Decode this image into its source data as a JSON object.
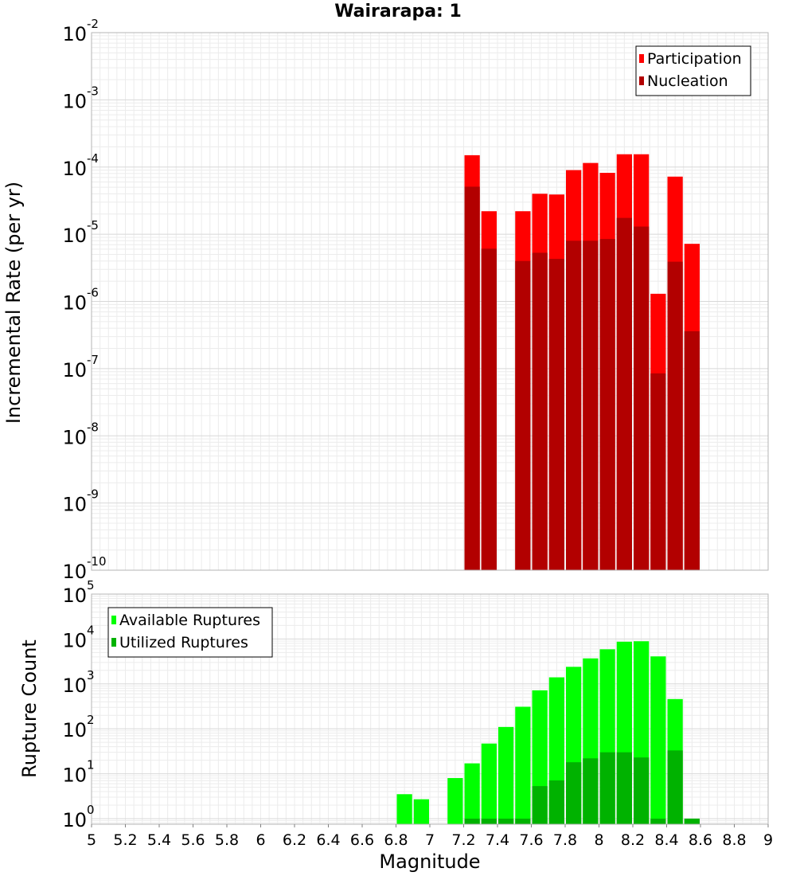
{
  "title": "Wairarapa: 1",
  "chart_data": [
    {
      "type": "bar",
      "ylabel": "Incremental Rate (per yr)",
      "xlabel": "",
      "yscale": "log",
      "ylim": [
        1e-10,
        0.01
      ],
      "xlim": [
        5,
        9
      ],
      "bin_width": 0.1,
      "grid": true,
      "legend_placement": "top-right",
      "legend": [
        "Participation",
        "Nucleation"
      ],
      "colors": {
        "Participation": "#ff0000",
        "Nucleation": "#b20000"
      },
      "series": [
        {
          "name": "Participation",
          "x": [
            7.25,
            7.35,
            7.55,
            7.65,
            7.75,
            7.85,
            7.95,
            8.05,
            8.15,
            8.25,
            8.35,
            8.45,
            8.55
          ],
          "values": [
            0.00015,
            2.2e-05,
            2.2e-05,
            4e-05,
            3.9e-05,
            9e-05,
            0.000115,
            8.2e-05,
            0.000155,
            0.000155,
            1.3e-06,
            7.2e-05,
            7.2e-06
          ]
        },
        {
          "name": "Nucleation",
          "x": [
            7.25,
            7.35,
            7.55,
            7.65,
            7.75,
            7.85,
            7.95,
            8.05,
            8.15,
            8.25,
            8.35,
            8.45,
            8.55
          ],
          "values": [
            5.1e-05,
            6.1e-06,
            4e-06,
            5.3e-06,
            4.3e-06,
            8e-06,
            8e-06,
            8.5e-06,
            1.75e-05,
            1.3e-05,
            8.5e-08,
            3.9e-06,
            3.6e-07
          ]
        }
      ],
      "yticks": [
        {
          "base": "10",
          "exp": "-10"
        },
        {
          "base": "10",
          "exp": "-9"
        },
        {
          "base": "10",
          "exp": "-8"
        },
        {
          "base": "10",
          "exp": "-7"
        },
        {
          "base": "10",
          "exp": "-6"
        },
        {
          "base": "10",
          "exp": "-5"
        },
        {
          "base": "10",
          "exp": "-4"
        },
        {
          "base": "10",
          "exp": "-3"
        },
        {
          "base": "10",
          "exp": "-2"
        }
      ]
    },
    {
      "type": "bar",
      "ylabel": "Rupture Count",
      "xlabel": "Magnitude",
      "yscale": "log",
      "ylim": [
        0.75,
        100000.0
      ],
      "xlim": [
        5,
        9
      ],
      "bin_width": 0.1,
      "grid": true,
      "legend_placement": "top-left",
      "legend": [
        "Available Ruptures",
        "Utilized Ruptures"
      ],
      "colors": {
        "Available Ruptures": "#00ff00",
        "Utilized Ruptures": "#00b200"
      },
      "series": [
        {
          "name": "Available Ruptures",
          "x": [
            6.85,
            6.95,
            7.15,
            7.25,
            7.35,
            7.45,
            7.55,
            7.65,
            7.75,
            7.85,
            7.95,
            8.05,
            8.15,
            8.25,
            8.35,
            8.45,
            8.55
          ],
          "values": [
            3.5,
            2.7,
            8,
            17,
            47,
            110,
            310,
            720,
            1400,
            2400,
            3700,
            5900,
            8700,
            8900,
            4100,
            460,
            1
          ]
        },
        {
          "name": "Utilized Ruptures",
          "x": [
            7.25,
            7.35,
            7.45,
            7.55,
            7.65,
            7.75,
            7.85,
            7.95,
            8.05,
            8.15,
            8.25,
            8.35,
            8.45,
            8.55
          ],
          "values": [
            1,
            1,
            1,
            1,
            5.3,
            7.1,
            18,
            22,
            30,
            30,
            23,
            1,
            33,
            1
          ]
        }
      ],
      "yticks": [
        {
          "base": "10",
          "exp": "0"
        },
        {
          "base": "10",
          "exp": "1"
        },
        {
          "base": "10",
          "exp": "2"
        },
        {
          "base": "10",
          "exp": "3"
        },
        {
          "base": "10",
          "exp": "4"
        },
        {
          "base": "10",
          "exp": "5"
        }
      ],
      "xticks": [
        "5",
        "5.2",
        "5.4",
        "5.6",
        "5.8",
        "6",
        "6.2",
        "6.4",
        "6.6",
        "6.8",
        "7",
        "7.2",
        "7.4",
        "7.6",
        "7.8",
        "8",
        "8.2",
        "8.4",
        "8.6",
        "8.8",
        "9"
      ]
    }
  ]
}
